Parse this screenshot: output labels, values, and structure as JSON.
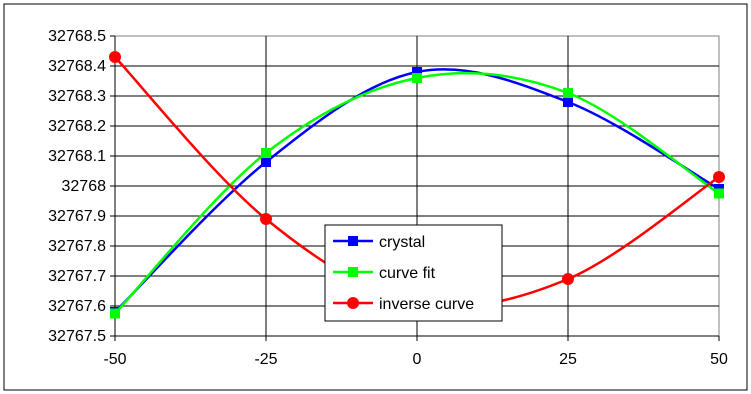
{
  "chart_data": {
    "type": "line",
    "title": "",
    "xlabel": "",
    "ylabel": "",
    "xlim": [
      -50,
      50
    ],
    "ylim": [
      32767.5,
      32768.5
    ],
    "x_ticks": [
      -50,
      -25,
      0,
      25,
      50
    ],
    "x_tick_labels": [
      "-50",
      "-25",
      "0",
      "25",
      "50"
    ],
    "y_ticks": [
      32767.5,
      32767.6,
      32767.7,
      32767.8,
      32767.9,
      32768.0,
      32768.1,
      32768.2,
      32768.3,
      32768.4,
      32768.5
    ],
    "y_tick_labels": [
      "32767.5",
      "32767.6",
      "32767.7",
      "32767.8",
      "32767.9",
      "32768",
      "32768.1",
      "32768.2",
      "32768.3",
      "32768.4",
      "32768.5"
    ],
    "grid": true,
    "legend": "center",
    "series": [
      {
        "name": "crystal",
        "color": "#0000ff",
        "marker": "square",
        "x": [
          -50,
          -25,
          0,
          25,
          50
        ],
        "y": [
          32767.58,
          32768.08,
          32768.38,
          32768.28,
          32767.99
        ]
      },
      {
        "name": "curve fit",
        "color": "#00ff00",
        "marker": "square",
        "x": [
          -50,
          -25,
          0,
          25,
          50
        ],
        "y": [
          32767.575,
          32768.11,
          32768.36,
          32768.31,
          32767.975
        ]
      },
      {
        "name": "inverse curve",
        "color": "#ff0000",
        "marker": "circle",
        "x": [
          -50,
          -25,
          0,
          25,
          50
        ],
        "y": [
          32768.43,
          32767.89,
          32767.61,
          32767.69,
          32768.03
        ]
      }
    ]
  }
}
